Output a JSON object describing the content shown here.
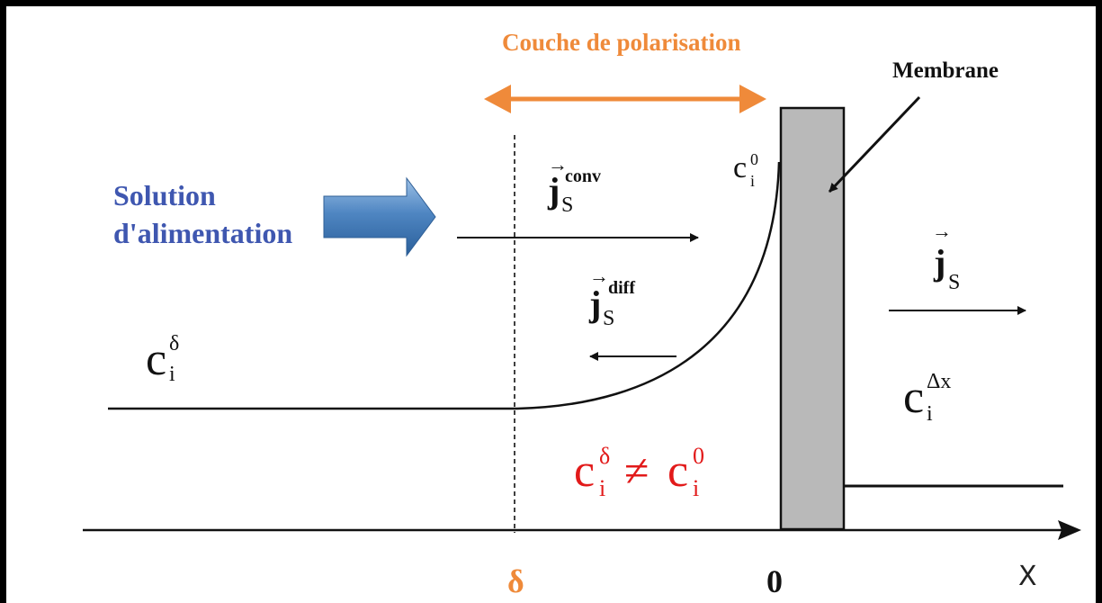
{
  "title": "Couche de polarisation",
  "membrane_label": "Membrane",
  "feed_label_line1": "Solution",
  "feed_label_line2": "d'alimentation",
  "conc_bulk": {
    "base": "c",
    "sub": "i",
    "sup": "δ"
  },
  "conc_wall": {
    "base": "c",
    "sub": "i",
    "sup": "0"
  },
  "conc_permeate": {
    "base": "c",
    "sub": "i",
    "sup": "Δx"
  },
  "flux_conv": {
    "base": "j",
    "sub": "S",
    "sup": "conv"
  },
  "flux_diff": {
    "base": "j",
    "sub": "S",
    "sup": "diff"
  },
  "flux_permeate": {
    "base": "j",
    "sub": "S"
  },
  "inequality": {
    "lhs_sup": "δ",
    "op": "≠",
    "rhs_sup": "0",
    "base": "c",
    "sub": "i"
  },
  "axis": {
    "delta": "δ",
    "zero": "0",
    "x": "X"
  },
  "colors": {
    "title": "#ef8a3a",
    "feed_text": "#3f57b0",
    "feed_arrow": "#3d78b5",
    "membrane": "#b9b9b9",
    "inequality": "#e21a1a"
  }
}
